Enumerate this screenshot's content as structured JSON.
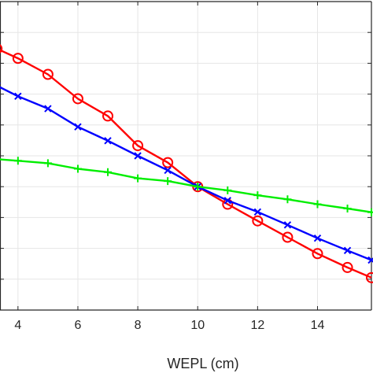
{
  "chart_data": {
    "type": "line",
    "title": "",
    "xlabel": "WEPL (cm)",
    "ylabel": "",
    "xlim": [
      3.4,
      15.8
    ],
    "ylim": [
      0,
      10
    ],
    "x_ticks": [
      4,
      6,
      8,
      10,
      12,
      14
    ],
    "x_tick_labels": [
      "4",
      "6",
      "8",
      "10",
      "12",
      "14"
    ],
    "y_gridlines": [
      0,
      1,
      2,
      3,
      4,
      5,
      6,
      7,
      8,
      9,
      10
    ],
    "grid": true,
    "legend": "none",
    "series": [
      {
        "color": "#ff0000",
        "marker": "circle",
        "x": [
          3.3,
          4,
          5,
          6,
          7,
          8,
          9,
          10,
          11,
          12,
          13,
          14,
          15,
          15.8
        ],
        "y": [
          8.47,
          8.16,
          7.64,
          6.85,
          6.29,
          5.33,
          4.78,
          4.0,
          3.43,
          2.89,
          2.36,
          1.83,
          1.38,
          1.05
        ]
      },
      {
        "color": "#0000ff",
        "marker": "x",
        "x": [
          3.3,
          4,
          5,
          6,
          7,
          8,
          9,
          10,
          11,
          12,
          13,
          14,
          15,
          15.8
        ],
        "y": [
          7.27,
          6.93,
          6.53,
          5.94,
          5.49,
          5.0,
          4.53,
          4.0,
          3.55,
          3.18,
          2.76,
          2.33,
          1.93,
          1.62
        ]
      },
      {
        "color": "#00ee00",
        "marker": "plus",
        "x": [
          3.3,
          4,
          5,
          6,
          7,
          8,
          9,
          10,
          11,
          12,
          13,
          14,
          15,
          15.8
        ],
        "y": [
          4.89,
          4.84,
          4.76,
          4.58,
          4.47,
          4.27,
          4.18,
          4.0,
          3.88,
          3.72,
          3.59,
          3.43,
          3.29,
          3.17
        ]
      }
    ]
  }
}
